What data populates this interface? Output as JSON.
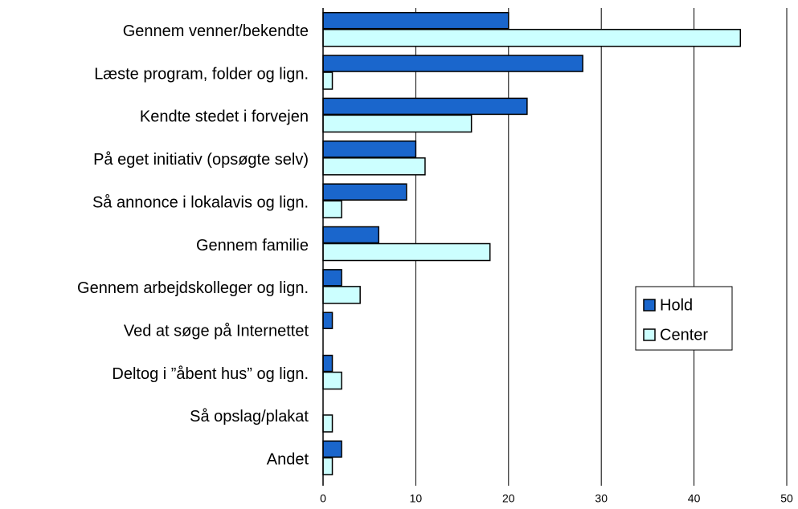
{
  "chart_data": {
    "type": "hbar",
    "categories": [
      "Gennem venner/bekendte",
      "Læste program, folder og lign.",
      "Kendte stedet i forvejen",
      "På eget initiativ (opsøgte selv)",
      "Så annonce i lokalavis og lign.",
      "Gennem familie",
      "Gennem arbejdskolleger og lign.",
      "Ved at søge på Internettet",
      "Deltog i ”åbent hus” og lign.",
      "Så opslag/plakat",
      "Andet"
    ],
    "series": [
      {
        "name": "Hold",
        "color": "#1a66cc",
        "values": [
          20,
          28,
          22,
          10,
          9,
          6,
          2,
          1,
          1,
          0,
          2
        ]
      },
      {
        "name": "Center",
        "color": "#ccffff",
        "values": [
          45,
          1,
          16,
          11,
          2,
          18,
          4,
          0,
          2,
          1,
          1
        ]
      }
    ],
    "xlim": [
      0,
      50
    ],
    "xticks": [
      0,
      10,
      20,
      30,
      40,
      50
    ],
    "grid": true,
    "legend": "right"
  }
}
